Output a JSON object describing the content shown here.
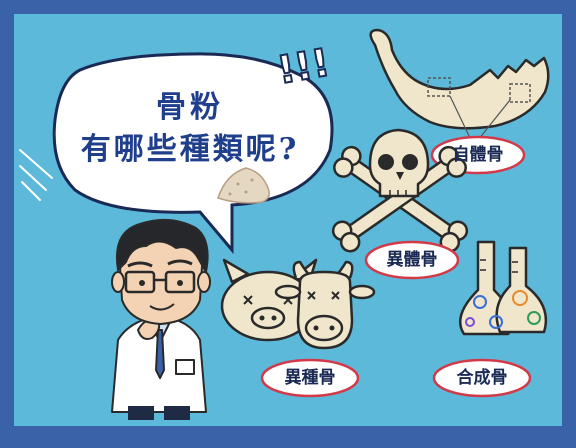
{
  "headline": {
    "line1": "骨粉",
    "line2": "有哪些種類呢?"
  },
  "exclaim": "!!!",
  "labels": {
    "autograft": "自體骨",
    "allograft": "異體骨",
    "xenograft": "異種骨",
    "synthetic": "合成骨"
  },
  "colors": {
    "frame": "#3a62a8",
    "background": "#5cb9d9",
    "headline_text": "#1f3f8c",
    "label_ring": "#d23a4a",
    "bone": "#efe6cc"
  },
  "icons": [
    "speech-bubble-icon",
    "jawbone-icon",
    "skull-crossbones-icon",
    "pig-icon",
    "cow-icon",
    "lab-flasks-icon",
    "powder-pile-icon",
    "doctor-figure"
  ]
}
